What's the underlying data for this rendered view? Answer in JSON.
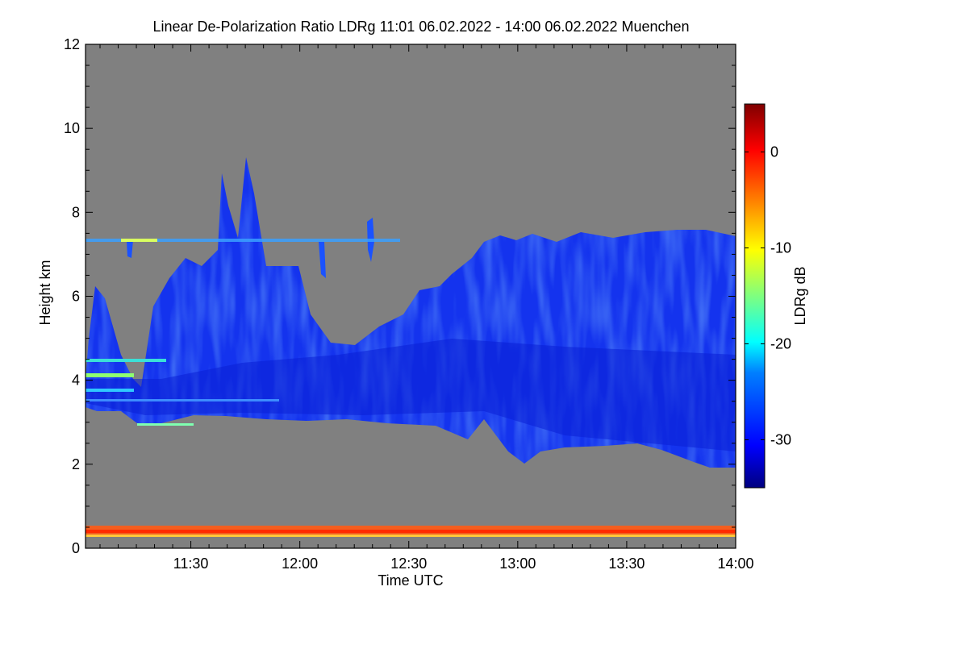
{
  "chart_data": {
    "type": "heatmap",
    "title": "Linear De-Polarization Ratio LDRg   11:01 06.02.2022 - 14:00 06.02.2022 Muenchen",
    "xlabel": "Time UTC",
    "ylabel": "Height km",
    "colorbar_label": "LDRg dB",
    "x_range": [
      "11:01",
      "14:00"
    ],
    "y_range": [
      0,
      12
    ],
    "x_ticks": [
      "11:30",
      "12:00",
      "12:30",
      "13:00",
      "13:30",
      "14:00"
    ],
    "y_ticks": [
      0,
      2,
      4,
      6,
      8,
      10,
      12
    ],
    "colorbar_range": [
      -35,
      5
    ],
    "colorbar_ticks": [
      0,
      -10,
      -20,
      -30
    ],
    "colormap": [
      "#00007f",
      "#0000ff",
      "#007fff",
      "#00ffff",
      "#7fff7f",
      "#ffff00",
      "#ff7f00",
      "#ff0000",
      "#7f0000"
    ],
    "background_color": "#808080",
    "features": [
      {
        "description": "main cloud layer, base ~3 km rising top from ~4.7 km at 12:05 to ~7.3 km at 14:00",
        "ldr_db": -30
      },
      {
        "description": "fall streaks 11:20-12:00 reaching ~9 km",
        "ldr_db": -29
      },
      {
        "description": "near-surface clutter ~0.3 km",
        "ldr_db": -2
      }
    ]
  }
}
